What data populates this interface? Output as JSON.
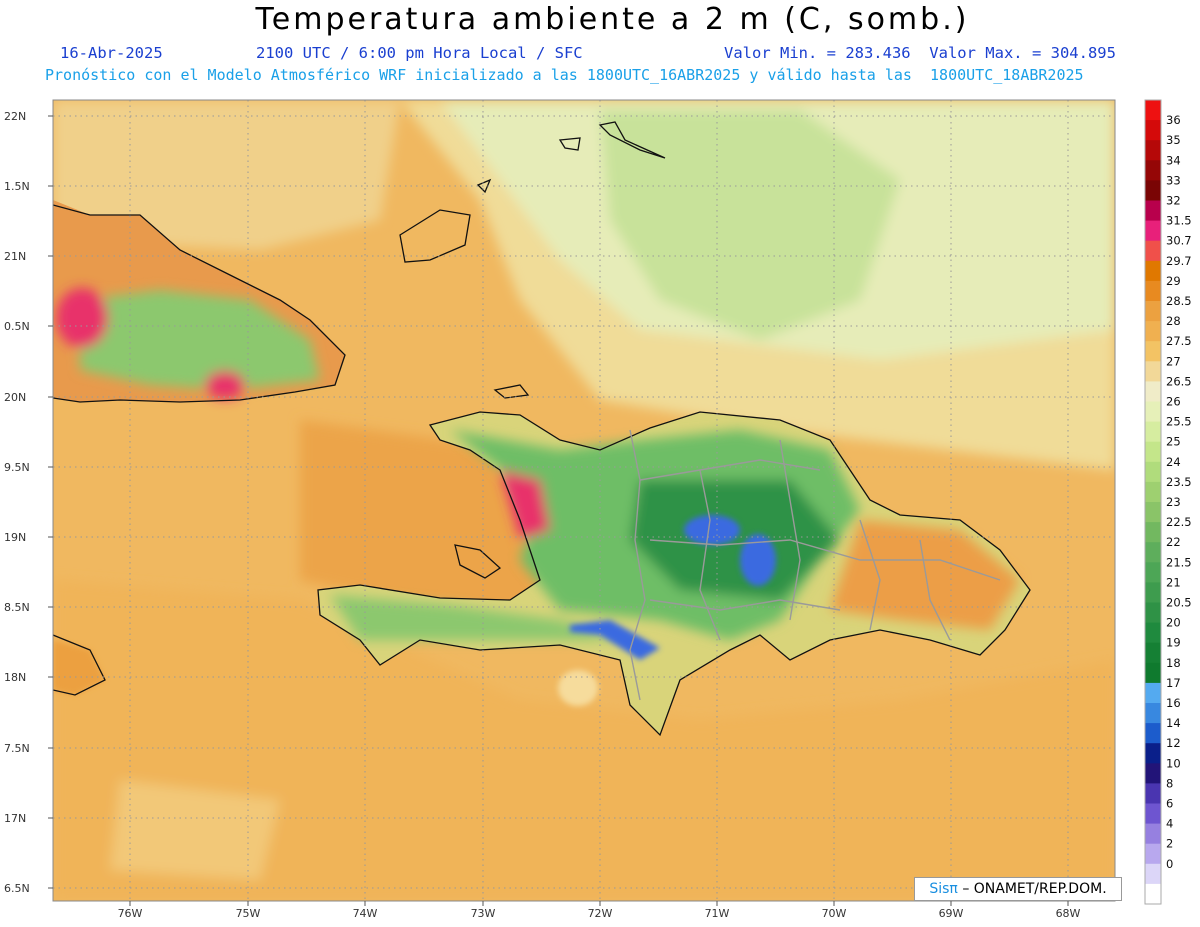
{
  "header": {
    "title": "Temperatura ambiente a 2 m (C, somb.)",
    "date": "16-Abr-2025",
    "time": "2100 UTC / 6:00 pm Hora Local / SFC",
    "minmax": "Valor Min. = 283.436  Valor Max. = 304.895",
    "subtitle": "Pronóstico con el Modelo Atmosférico WRF inicializado a las 1800UTC_16ABR2025 y válido hasta las  1800UTC_18ABR2025"
  },
  "axes": {
    "lat_labels": [
      "22N",
      "1.5N",
      "21N",
      "0.5N",
      "20N",
      "9.5N",
      "19N",
      "8.5N",
      "18N",
      "7.5N",
      "17N",
      "6.5N"
    ],
    "lon_labels": [
      "76W",
      "75W",
      "74W",
      "73W",
      "72W",
      "71W",
      "70W",
      "69W",
      "68W"
    ]
  },
  "colorbar": {
    "labels": [
      "36",
      "35",
      "34",
      "33",
      "32",
      "31.5",
      "30.7",
      "29.7",
      "29",
      "28.5",
      "28",
      "27.5",
      "27",
      "26.5",
      "26",
      "25.5",
      "25",
      "24",
      "23.5",
      "23",
      "22.5",
      "22",
      "21.5",
      "21",
      "20.5",
      "20",
      "19",
      "18",
      "17",
      "16",
      "14",
      "12",
      "10",
      "8",
      "6",
      "4",
      "2",
      "0"
    ],
    "colors": [
      "#ee1111",
      "#d40a0a",
      "#b50808",
      "#950606",
      "#7a0505",
      "#b8004c",
      "#e8207a",
      "#f0504a",
      "#e07800",
      "#e88a20",
      "#eca140",
      "#f0b050",
      "#f3c364",
      "#f2d898",
      "#f0ecc8",
      "#e6f0b8",
      "#d6eda0",
      "#c4e68a",
      "#b0dc7c",
      "#9ed070",
      "#8ac468",
      "#72b860",
      "#5eae5c",
      "#4da656",
      "#3e9c4e",
      "#2f9246",
      "#1f8a3e",
      "#158034",
      "#0f7a2e",
      "#54aaf0",
      "#3888e0",
      "#1c5ccc",
      "#0a1f8a",
      "#221478",
      "#4a35b0",
      "#6e55d0",
      "#9680e0",
      "#b8a8ee",
      "#dcd6f8",
      "#ffffff"
    ]
  },
  "credit": {
    "brand": "Sisπ",
    "text": "– ONAMET/REP.DOM."
  },
  "map_colors": {
    "ocean": "#f0b860",
    "land_green": "#7cc46a",
    "highland_blue": "#3b6ae0",
    "hot_red": "#e8306a"
  }
}
